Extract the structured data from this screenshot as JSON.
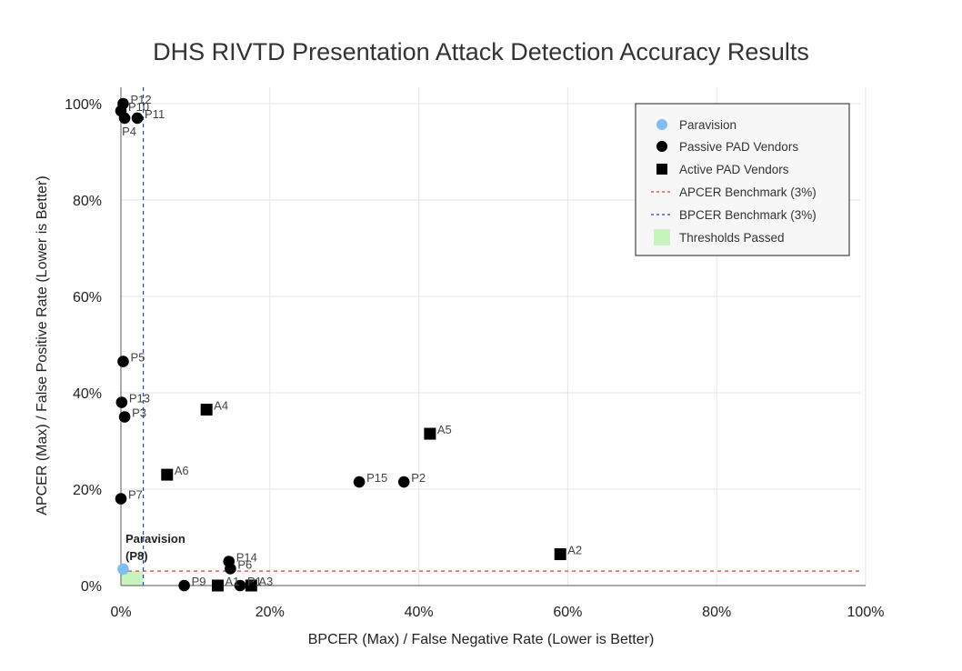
{
  "chart_data": {
    "type": "scatter",
    "title": "DHS RIVTD Presentation Attack Detection Accuracy Results",
    "xlabel": "BPCER (Max) / False Negative Rate (Lower is Better)",
    "ylabel": "APCER (Max) / False Positive Rate (Lower is Better)",
    "xlim": [
      0,
      100
    ],
    "ylim": [
      0,
      100
    ],
    "x_ticks": [
      "0%",
      "20%",
      "40%",
      "60%",
      "80%",
      "100%"
    ],
    "y_ticks": [
      "0%",
      "20%",
      "40%",
      "60%",
      "80%",
      "100%"
    ],
    "grid": true,
    "legend_position": "top-right",
    "series": [
      {
        "name": "Paravision",
        "marker": "circle",
        "color": "#7fbef5",
        "points": [
          {
            "label": "",
            "x": 0.3,
            "y": 3.4
          }
        ]
      },
      {
        "name": "Passive PAD Vendors",
        "marker": "circle",
        "color": "#000000",
        "points": [
          {
            "label": "P12",
            "x": 0.3,
            "y": 100
          },
          {
            "label": "P10",
            "x": 0.0,
            "y": 98.5
          },
          {
            "label": "P4",
            "x": 0.5,
            "y": 97
          },
          {
            "label": "P11",
            "x": 2.2,
            "y": 97
          },
          {
            "label": "P5",
            "x": 0.3,
            "y": 46.5
          },
          {
            "label": "P13",
            "x": 0.1,
            "y": 38
          },
          {
            "label": "P3",
            "x": 0.5,
            "y": 35
          },
          {
            "label": "P7",
            "x": 0.0,
            "y": 18
          },
          {
            "label": "P15",
            "x": 32,
            "y": 21.5
          },
          {
            "label": "P2",
            "x": 38,
            "y": 21.5
          },
          {
            "label": "P14",
            "x": 14.5,
            "y": 5
          },
          {
            "label": "P6",
            "x": 14.7,
            "y": 3.5
          },
          {
            "label": "P9",
            "x": 8.5,
            "y": 0
          },
          {
            "label": "P1",
            "x": 16,
            "y": 0
          }
        ]
      },
      {
        "name": "Active PAD Vendors",
        "marker": "square",
        "color": "#000000",
        "points": [
          {
            "label": "A4",
            "x": 11.5,
            "y": 36.5
          },
          {
            "label": "A5",
            "x": 41.5,
            "y": 31.5
          },
          {
            "label": "A6",
            "x": 6.2,
            "y": 23
          },
          {
            "label": "A2",
            "x": 59,
            "y": 6.5
          },
          {
            "label": "A1",
            "x": 13,
            "y": 0
          },
          {
            "label": "A3",
            "x": 17.5,
            "y": 0
          }
        ]
      }
    ],
    "benchmarks": [
      {
        "name": "APCER Benchmark (3%)",
        "axis": "y",
        "value": 3,
        "color": "#e53935",
        "style": "dashed"
      },
      {
        "name": "BPCER Benchmark (3%)",
        "axis": "x",
        "value": 3,
        "color": "#2140b8",
        "style": "dashed"
      }
    ],
    "region": {
      "name": "Thresholds Passed",
      "x": [
        0,
        3
      ],
      "y": [
        0,
        3
      ],
      "color": "#c8f5bd"
    },
    "callout": {
      "text_line1": "Paravision",
      "text_line2": "(P8)"
    }
  }
}
